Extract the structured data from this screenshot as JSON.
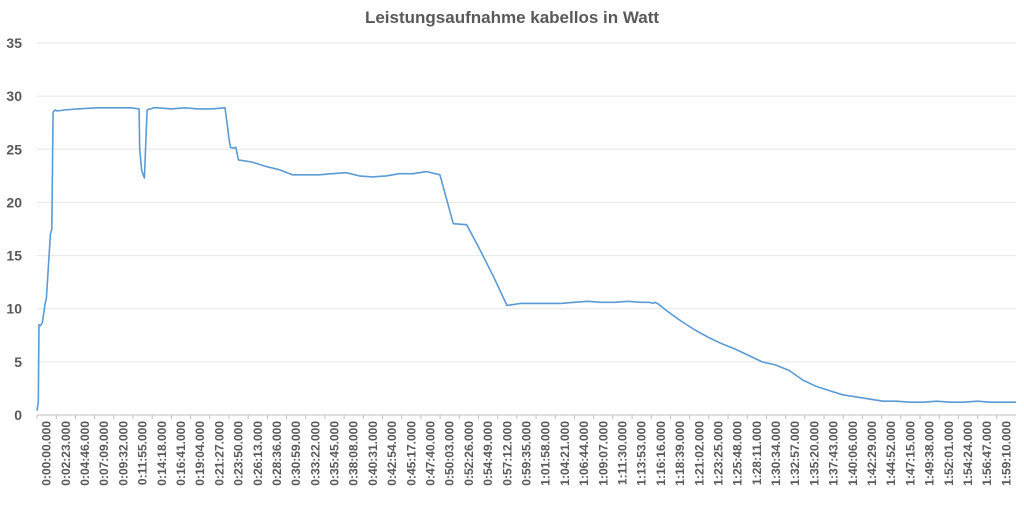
{
  "chart_data": {
    "type": "line",
    "title": "Leistungsaufnahme kabellos in Watt",
    "xlabel": "",
    "ylabel": "",
    "ylim": [
      0,
      35
    ],
    "yticks": [
      0,
      5,
      10,
      15,
      20,
      25,
      30,
      35
    ],
    "grid": true,
    "legend": "none",
    "color": "#5b9bd5",
    "x_unit": "seconds since 0:00:00",
    "xlim": [
      0,
      7290
    ],
    "xticks": [
      "0:00:00.000",
      "0:02:23.000",
      "0:04:46.000",
      "0:07:09.000",
      "0:09:32.000",
      "0:11:55.000",
      "0:14:18.000",
      "0:16:41.000",
      "0:19:04.000",
      "0:21:27.000",
      "0:23:50.000",
      "0:26:13.000",
      "0:28:36.000",
      "0:30:59.000",
      "0:33:22.000",
      "0:35:45.000",
      "0:38:08.000",
      "0:40:31.000",
      "0:42:54.000",
      "0:45:17.000",
      "0:47:40.000",
      "0:50:03.000",
      "0:52:26.000",
      "0:54:49.000",
      "0:57:12.000",
      "0:59:35.000",
      "1:01:58.000",
      "1:04:21.000",
      "1:06:44.000",
      "1:09:07.000",
      "1:11:30.000",
      "1:13:53.000",
      "1:16:16.000",
      "1:18:39.000",
      "1:21:02.000",
      "1:23:25.000",
      "1:25:48.000",
      "1:28:11.000",
      "1:30:34.000",
      "1:32:57.000",
      "1:35:20.000",
      "1:37:43.000",
      "1:40:06.000",
      "1:42:29.000",
      "1:44:52.000",
      "1:47:15.000",
      "1:49:38.000",
      "1:52:01.000",
      "1:54:24.000",
      "1:56:47.000",
      "1:59:10.000"
    ],
    "series": [
      {
        "name": "",
        "x": [
          0,
          10,
          15,
          25,
          40,
          60,
          70,
          85,
          100,
          110,
          120,
          135,
          150,
          200,
          300,
          450,
          600,
          700,
          760,
          765,
          780,
          800,
          820,
          840,
          850,
          870,
          900,
          1000,
          1100,
          1200,
          1300,
          1400,
          1420,
          1430,
          1440,
          1460,
          1480,
          1500,
          1600,
          1700,
          1800,
          1900,
          2000,
          2100,
          2200,
          2300,
          2400,
          2500,
          2600,
          2700,
          2800,
          2900,
          3000,
          3100,
          3200,
          3300,
          3400,
          3500,
          3600,
          3700,
          3800,
          3900,
          4000,
          4100,
          4200,
          4300,
          4400,
          4500,
          4560,
          4590,
          4600,
          4620,
          4700,
          4800,
          4900,
          5000,
          5100,
          5200,
          5300,
          5400,
          5500,
          5600,
          5700,
          5800,
          5900,
          6000,
          6100,
          6200,
          6300,
          6400,
          6500,
          6600,
          6700,
          6800,
          6900,
          7000,
          7100,
          7200,
          7290
        ],
        "y": [
          0.4,
          1.2,
          8.5,
          8.4,
          8.7,
          10.5,
          11,
          14,
          17,
          17.5,
          28.5,
          28.7,
          28.6,
          28.7,
          28.8,
          28.9,
          28.9,
          28.9,
          28.8,
          25,
          23,
          22.3,
          28.7,
          28.8,
          28.8,
          28.9,
          28.9,
          28.8,
          28.9,
          28.8,
          28.8,
          28.9,
          27,
          26,
          25.2,
          25.1,
          25.2,
          24,
          23.8,
          23.4,
          23.1,
          22.6,
          22.6,
          22.6,
          22.7,
          22.8,
          22.5,
          22.4,
          22.5,
          22.7,
          22.7,
          22.9,
          22.6,
          18,
          17.9,
          15.5,
          13,
          10.3,
          10.5,
          10.5,
          10.5,
          10.5,
          10.6,
          10.7,
          10.6,
          10.6,
          10.7,
          10.6,
          10.6,
          10.5,
          10.6,
          10.5,
          9.7,
          8.8,
          8,
          7.3,
          6.7,
          6.2,
          5.6,
          5,
          4.7,
          4.2,
          3.3,
          2.7,
          2.3,
          1.9,
          1.7,
          1.5,
          1.3,
          1.3,
          1.2,
          1.2,
          1.3,
          1.2,
          1.2,
          1.3,
          1.2,
          1.2,
          1.2
        ]
      }
    ]
  }
}
